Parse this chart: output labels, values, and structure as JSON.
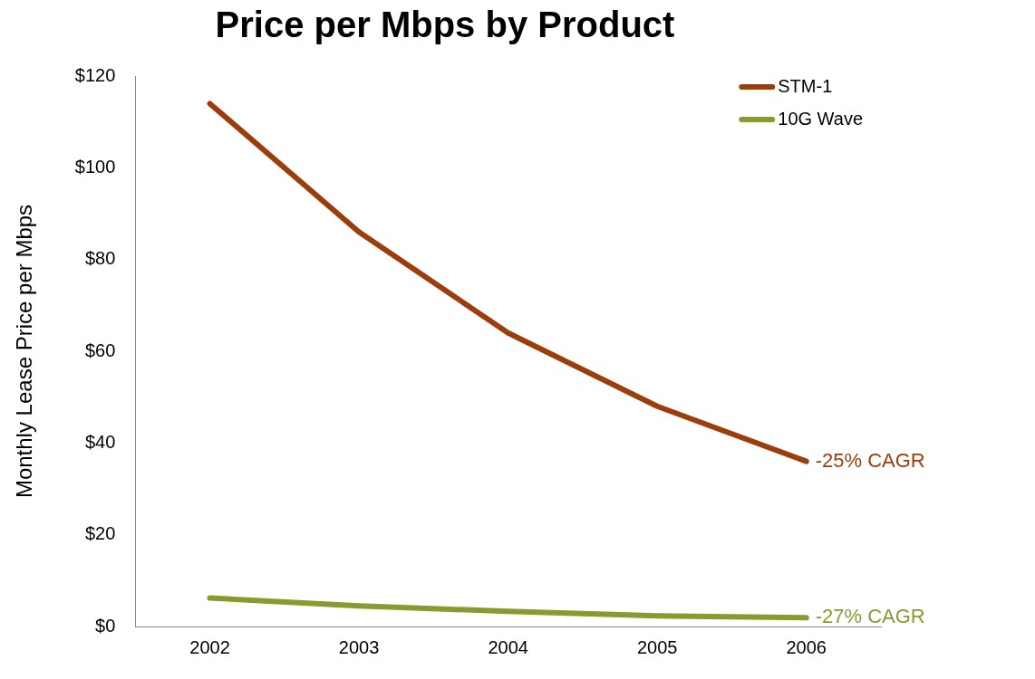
{
  "chart_data": {
    "type": "line",
    "title": "Price per Mbps by Product",
    "ylabel": "Monthly Lease Price per Mbps",
    "categories": [
      "2002",
      "2003",
      "2004",
      "2005",
      "2006"
    ],
    "series": [
      {
        "name": "STM-1",
        "color": "#9c3d0c",
        "values": [
          114,
          86,
          64,
          48,
          36
        ]
      },
      {
        "name": "10G Wave",
        "color": "#8a9a2e",
        "values": [
          6.2,
          4.5,
          3.3,
          2.3,
          1.9
        ]
      }
    ],
    "ylim": [
      0,
      120
    ],
    "yticks": [
      {
        "value": 0,
        "label": "$0"
      },
      {
        "value": 20,
        "label": "$20"
      },
      {
        "value": 40,
        "label": "$40"
      },
      {
        "value": 60,
        "label": "$60"
      },
      {
        "value": 80,
        "label": "$80"
      },
      {
        "value": 100,
        "label": "$100"
      },
      {
        "value": 120,
        "label": "$120"
      }
    ],
    "annotations": [
      {
        "text": "-25% CAGR",
        "x": "2006",
        "y": 36
      },
      {
        "text": "-27% CAGR",
        "x": "2006",
        "y": 1.9
      }
    ],
    "grid": false,
    "legend": "top right",
    "marker": "none",
    "line_style": "solid"
  }
}
